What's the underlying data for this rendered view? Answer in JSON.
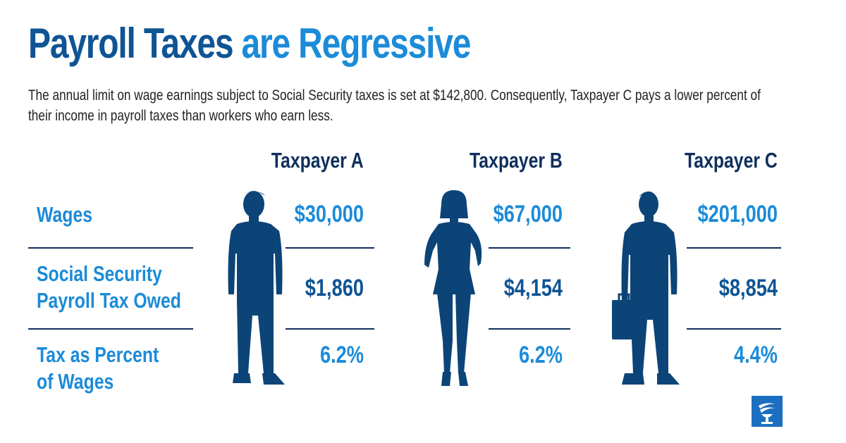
{
  "title_part1": "Payroll Taxes",
  "title_part2": "are Regressive",
  "subtitle": "The annual limit on wage earnings subject to Social Security taxes is set at $142,800. Consequently, Taxpayer C pays a lower percent of their income in payroll taxes than workers who earn less.",
  "row_labels": {
    "wages": "Wages",
    "tax_owed_line1": "Social Security",
    "tax_owed_line2": "Payroll Tax Owed",
    "percent_line1": "Tax as Percent",
    "percent_line2": "of Wages"
  },
  "taxpayers": [
    {
      "name": "Taxpayer A",
      "wages": "$30,000",
      "tax_owed": "$1,860",
      "percent": "6.2%"
    },
    {
      "name": "Taxpayer B",
      "wages": "$67,000",
      "tax_owed": "$4,154",
      "percent": "6.2%"
    },
    {
      "name": "Taxpayer C",
      "wages": "$201,000",
      "tax_owed": "$8,854",
      "percent": "4.4%"
    }
  ],
  "chart_data": {
    "type": "table",
    "columns": [
      "Taxpayer A",
      "Taxpayer B",
      "Taxpayer C"
    ],
    "rows": [
      {
        "label": "Wages",
        "values": [
          30000,
          67000,
          201000
        ],
        "display": [
          "$30,000",
          "$67,000",
          "$201,000"
        ]
      },
      {
        "label": "Social Security Payroll Tax Owed",
        "values": [
          1860,
          4154,
          8854
        ],
        "display": [
          "$1,860",
          "$4,154",
          "$8,854"
        ]
      },
      {
        "label": "Tax as Percent of Wages",
        "values": [
          6.2,
          6.2,
          4.4
        ],
        "display": [
          "6.2%",
          "6.2%",
          "4.4%"
        ]
      }
    ]
  },
  "colors": {
    "dark_blue": "#0f5494",
    "bright_blue": "#1c8bd8",
    "navy": "#0f2f5c",
    "silhouette": "#0c4478"
  },
  "icons": [
    "person-silhouette-icon",
    "woman-silhouette-icon",
    "businessman-silhouette-icon",
    "torch-logo-icon"
  ]
}
